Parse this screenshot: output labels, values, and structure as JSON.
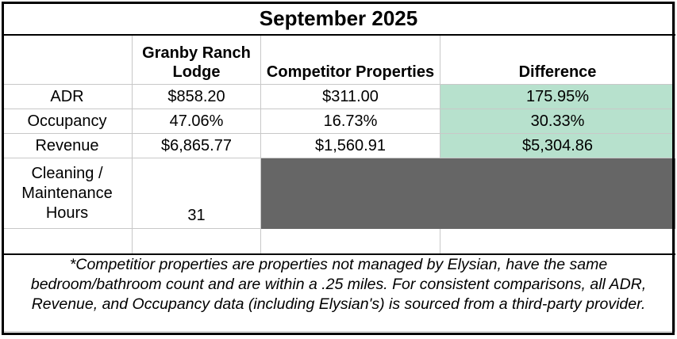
{
  "title": "September 2025",
  "columns": {
    "lodge": "Granby Ranch Lodge",
    "competitor": "Competitor Properties",
    "difference": "Difference"
  },
  "rows": [
    {
      "label": "ADR",
      "lodge": "$858.20",
      "competitor": "$311.00",
      "difference": "175.95%"
    },
    {
      "label": "Occupancy",
      "lodge": "47.06%",
      "competitor": "16.73%",
      "difference": "30.33%"
    },
    {
      "label": "Revenue",
      "lodge": "$6,865.77",
      "competitor": "$1,560.91",
      "difference": "$5,304.86"
    }
  ],
  "cleaning": {
    "label": "Cleaning / Maintenance Hours",
    "lodge": "31"
  },
  "footnote": "*Competitior properties are properties not managed by Elysian, have the same bedroom/bathroom count and are within a .25 miles. For consistent comparisons, all ADR, Revenue, and Occupancy data (including Elysian's) is sourced from a third-party provider.",
  "colors": {
    "difference_fill": "#b7e1cd",
    "grey_fill": "#666666"
  }
}
